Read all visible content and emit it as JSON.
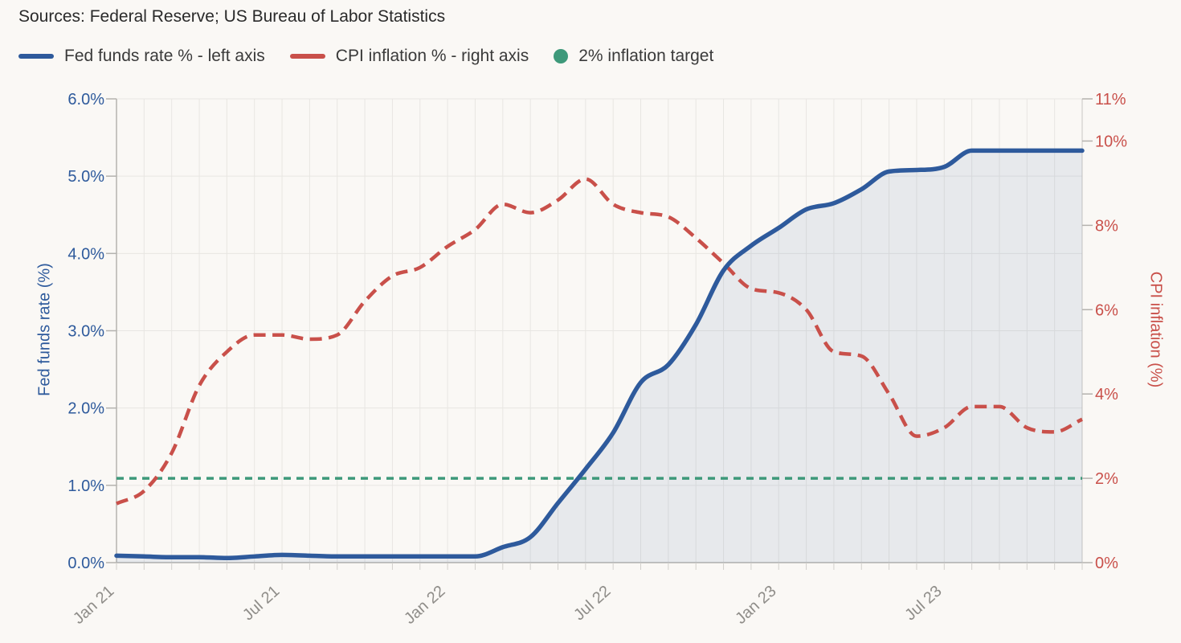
{
  "source_note": "Sources: Federal Reserve; US Bureau of Labor Statistics",
  "legend": [
    {
      "label": "Fed funds rate % - left axis",
      "color": "#2e5a9c",
      "swatch": "line"
    },
    {
      "label": "CPI inflation % - right axis",
      "color": "#c9504a",
      "swatch": "line"
    },
    {
      "label": "2% inflation target",
      "color": "#3e997a",
      "swatch": "dot"
    }
  ],
  "chart_data": {
    "type": "line",
    "x": [
      "Jan 21",
      "Feb 21",
      "Mar 21",
      "Apr 21",
      "May 21",
      "Jun 21",
      "Jul 21",
      "Aug 21",
      "Sep 21",
      "Oct 21",
      "Nov 21",
      "Dec 21",
      "Jan 22",
      "Feb 22",
      "Mar 22",
      "Apr 22",
      "May 22",
      "Jun 22",
      "Jul 22",
      "Aug 22",
      "Sep 22",
      "Oct 22",
      "Nov 22",
      "Dec 22",
      "Jan 23",
      "Feb 23",
      "Mar 23",
      "Apr 23",
      "May 23",
      "Jun 23",
      "Jul 23",
      "Aug 23",
      "Sep 23",
      "Oct 23",
      "Nov 23",
      "Dec 23"
    ],
    "x_ticks": [
      {
        "index": 0,
        "label": "Jan 21"
      },
      {
        "index": 6,
        "label": "Jul 21"
      },
      {
        "index": 12,
        "label": "Jan 22"
      },
      {
        "index": 18,
        "label": "Jul 22"
      },
      {
        "index": 24,
        "label": "Jan 23"
      },
      {
        "index": 30,
        "label": "Jul 23"
      }
    ],
    "series": [
      {
        "name": "Fed funds rate %",
        "axis": "left",
        "style": "solid",
        "area_fill": true,
        "color": "#2e5a9c",
        "values": [
          0.09,
          0.08,
          0.07,
          0.07,
          0.06,
          0.08,
          0.1,
          0.09,
          0.08,
          0.08,
          0.08,
          0.08,
          0.08,
          0.08,
          0.2,
          0.33,
          0.77,
          1.21,
          1.68,
          2.33,
          2.56,
          3.08,
          3.78,
          4.1,
          4.33,
          4.57,
          4.65,
          4.83,
          5.06,
          5.08,
          5.12,
          5.33,
          5.33,
          5.33,
          5.33,
          5.33
        ]
      },
      {
        "name": "CPI inflation %",
        "axis": "right",
        "style": "dashed",
        "area_fill": false,
        "color": "#c9504a",
        "values": [
          1.4,
          1.7,
          2.6,
          4.2,
          5.0,
          5.4,
          5.4,
          5.3,
          5.4,
          6.2,
          6.8,
          7.0,
          7.5,
          7.9,
          8.5,
          8.3,
          8.6,
          9.1,
          8.5,
          8.3,
          8.2,
          7.7,
          7.1,
          6.5,
          6.4,
          6.0,
          5.0,
          4.9,
          4.0,
          3.0,
          3.2,
          3.7,
          3.7,
          3.2,
          3.1,
          3.4
        ]
      }
    ],
    "target_line": {
      "label": "2% inflation target",
      "value": 2,
      "axis": "right",
      "style": "dotted",
      "color": "#3e997a"
    },
    "left_axis": {
      "title": "Fed funds rate (%)",
      "min": 0,
      "max": 6,
      "color": "#2e5a9c",
      "ticks": [
        {
          "value": 0,
          "label": "0.0%"
        },
        {
          "value": 1,
          "label": "1.0%"
        },
        {
          "value": 2,
          "label": "2.0%"
        },
        {
          "value": 3,
          "label": "3.0%"
        },
        {
          "value": 4,
          "label": "4.0%"
        },
        {
          "value": 5,
          "label": "5.0%"
        },
        {
          "value": 6,
          "label": "6.0%"
        }
      ]
    },
    "right_axis": {
      "title": "CPI inflation (%)",
      "min": 0,
      "max": 11,
      "color": "#c9504a",
      "ticks": [
        {
          "value": 0,
          "label": "0%"
        },
        {
          "value": 2,
          "label": "2%"
        },
        {
          "value": 4,
          "label": "4%"
        },
        {
          "value": 6,
          "label": "6%"
        },
        {
          "value": 8,
          "label": "8%"
        },
        {
          "value": 10,
          "label": "10%"
        },
        {
          "value": 11,
          "label": "11%"
        }
      ]
    },
    "grid": true,
    "legend_position": "top"
  }
}
